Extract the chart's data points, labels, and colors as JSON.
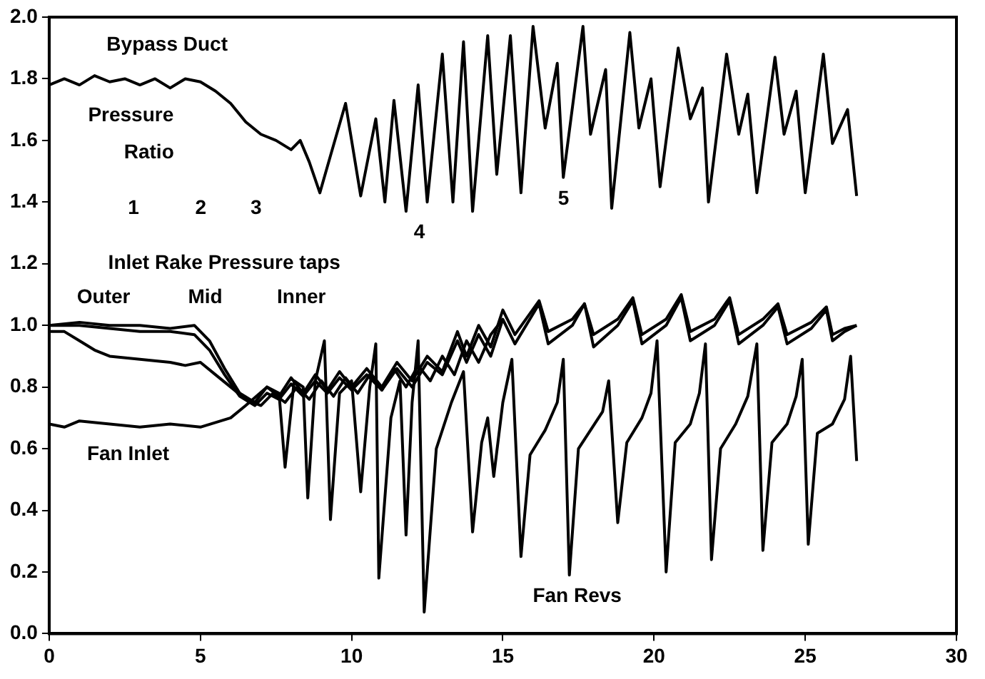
{
  "chart_data": {
    "type": "line",
    "xlim": [
      0,
      30
    ],
    "xticks": [
      0,
      5,
      10,
      15,
      20,
      25,
      30
    ],
    "ylim": [
      0,
      2
    ],
    "yticks": [
      {
        "value": 0,
        "label": "0.0"
      },
      {
        "value": 0.2,
        "label": "0.2"
      },
      {
        "value": 0.4,
        "label": "0.4"
      },
      {
        "value": 0.6,
        "label": "0.6"
      },
      {
        "value": 0.8,
        "label": "0.8"
      },
      {
        "value": 1,
        "label": "1.0"
      },
      {
        "value": 1.2,
        "label": "1.2"
      },
      {
        "value": 1.4,
        "label": "1.4"
      },
      {
        "value": 1.6,
        "label": "1.6"
      },
      {
        "value": 1.8,
        "label": "1.8"
      },
      {
        "value": 2,
        "label": "2.0"
      }
    ],
    "grid": false,
    "legend": false,
    "marker": "none",
    "line_style": "solid",
    "series": [
      {
        "color": "#000000",
        "x": [
          0,
          0.5,
          1,
          1.5,
          2,
          2.5,
          3,
          3.5,
          4,
          4.5,
          5,
          5.5,
          6,
          6.5,
          7,
          7.5,
          8,
          8.3,
          8.6,
          8.95,
          9.3,
          9.8,
          10.3,
          10.8,
          11.1,
          11.4,
          11.8,
          12.2,
          12.5,
          13.0,
          13.35,
          13.7,
          14.0,
          14.5,
          14.8,
          15.25,
          15.6,
          16.0,
          16.4,
          16.8,
          17.0,
          17.65,
          17.9,
          18.4,
          18.6,
          19.2,
          19.5,
          19.9,
          20.2,
          20.8,
          21.2,
          21.6,
          21.8,
          22.4,
          22.8,
          23.1,
          23.4,
          24.0,
          24.3,
          24.7,
          25.0,
          25.6,
          25.9,
          26.4,
          26.7
        ],
        "values": [
          1.78,
          1.8,
          1.78,
          1.81,
          1.79,
          1.8,
          1.78,
          1.8,
          1.77,
          1.8,
          1.79,
          1.76,
          1.72,
          1.66,
          1.62,
          1.6,
          1.57,
          1.6,
          1.53,
          1.43,
          1.55,
          1.72,
          1.42,
          1.67,
          1.4,
          1.73,
          1.37,
          1.78,
          1.4,
          1.88,
          1.4,
          1.92,
          1.37,
          1.94,
          1.49,
          1.94,
          1.43,
          1.97,
          1.64,
          1.85,
          1.48,
          1.97,
          1.62,
          1.83,
          1.38,
          1.95,
          1.64,
          1.8,
          1.45,
          1.9,
          1.67,
          1.77,
          1.4,
          1.88,
          1.62,
          1.75,
          1.43,
          1.87,
          1.62,
          1.76,
          1.43,
          1.88,
          1.59,
          1.7,
          1.42
        ]
      },
      {
        "color": "#000000",
        "x": [
          0,
          1,
          2,
          3,
          4,
          4.8,
          5.3,
          5.8,
          6.3,
          6.8,
          7.2,
          7.6,
          8,
          8.4,
          8.8,
          9.2,
          9.6,
          10,
          10.5,
          11,
          11.5,
          12,
          12.5,
          13,
          13.5,
          13.8,
          14.2,
          14.6,
          15,
          15.4,
          16.2,
          16.5,
          17.3,
          17.7,
          18.0,
          18.8,
          19.3,
          19.6,
          20.4,
          20.9,
          21.2,
          22,
          22.5,
          22.8,
          23.6,
          24.1,
          24.4,
          25.2,
          25.7,
          25.9,
          26.3,
          26.7
        ],
        "values": [
          1.0,
          1.01,
          1.0,
          1.0,
          0.99,
          1.0,
          0.95,
          0.86,
          0.78,
          0.75,
          0.8,
          0.77,
          0.83,
          0.78,
          0.84,
          0.79,
          0.85,
          0.8,
          0.86,
          0.8,
          0.88,
          0.82,
          0.9,
          0.85,
          0.98,
          0.9,
          1.0,
          0.93,
          1.05,
          0.97,
          1.08,
          0.98,
          1.02,
          1.07,
          0.97,
          1.02,
          1.09,
          0.97,
          1.02,
          1.1,
          0.98,
          1.02,
          1.09,
          0.97,
          1.02,
          1.07,
          0.97,
          1.01,
          1.06,
          0.97,
          0.99,
          1.0
        ]
      },
      {
        "color": "#000000",
        "x": [
          0,
          1,
          2,
          3,
          4,
          4.8,
          5.3,
          5.8,
          6.3,
          6.8,
          7.2,
          7.6,
          8,
          8.4,
          8.8,
          9.2,
          9.6,
          10,
          10.5,
          11,
          11.5,
          12,
          12.5,
          13,
          13.5,
          13.8,
          14.2,
          14.6,
          15,
          15.4,
          16.2,
          16.5,
          17.3,
          17.7,
          18.0,
          18.8,
          19.3,
          19.6,
          20.4,
          20.9,
          21.2,
          22,
          22.5,
          22.8,
          23.6,
          24.1,
          24.4,
          25.2,
          25.7,
          25.9,
          26.3,
          26.7
        ],
        "values": [
          1.0,
          1.0,
          0.99,
          0.98,
          0.98,
          0.97,
          0.92,
          0.84,
          0.77,
          0.74,
          0.78,
          0.76,
          0.81,
          0.77,
          0.82,
          0.78,
          0.83,
          0.79,
          0.84,
          0.79,
          0.86,
          0.8,
          0.88,
          0.84,
          0.95,
          0.88,
          0.97,
          0.9,
          1.02,
          0.94,
          1.07,
          0.94,
          1.0,
          1.07,
          0.93,
          1.0,
          1.08,
          0.94,
          1.0,
          1.09,
          0.95,
          1.0,
          1.08,
          0.94,
          1.0,
          1.06,
          0.94,
          0.99,
          1.05,
          0.95,
          0.98,
          1.0
        ]
      },
      {
        "color": "#000000",
        "x": [
          0,
          0.5,
          1,
          1.5,
          2,
          3,
          4,
          4.5,
          5,
          5.5,
          6,
          6.5,
          7,
          7.4,
          7.8,
          8.2,
          8.6,
          9,
          9.4,
          9.8,
          10.2,
          10.6,
          11,
          11.4,
          11.8,
          12.2,
          12.6,
          13,
          13.4,
          13.8,
          14.2,
          14.6,
          15
        ],
        "values": [
          0.98,
          0.98,
          0.95,
          0.92,
          0.9,
          0.89,
          0.88,
          0.87,
          0.88,
          0.84,
          0.8,
          0.76,
          0.74,
          0.78,
          0.75,
          0.8,
          0.76,
          0.82,
          0.77,
          0.83,
          0.78,
          0.84,
          0.79,
          0.86,
          0.8,
          0.87,
          0.82,
          0.9,
          0.84,
          0.95,
          0.88,
          0.97,
          1.02
        ]
      },
      {
        "color": "#000000",
        "x": [
          0,
          0.5,
          1,
          2,
          3,
          4,
          5,
          6,
          6.5,
          7.2,
          7.6,
          7.8,
          8.1,
          8.4,
          8.55,
          8.8,
          9.1,
          9.3,
          9.6,
          10.0,
          10.3,
          10.6,
          10.8,
          10.9,
          11.3,
          11.6,
          11.8,
          12.0,
          12.2,
          12.4,
          12.8,
          13.3,
          13.7,
          14.0,
          14.3,
          14.5,
          14.7,
          15.0,
          15.3,
          15.6,
          15.9,
          16.4,
          16.8,
          17.0,
          17.2,
          17.5,
          17.9,
          18.3,
          18.5,
          18.8,
          19.1,
          19.6,
          19.9,
          20.1,
          20.4,
          20.7,
          21.2,
          21.5,
          21.7,
          21.9,
          22.2,
          22.7,
          23.1,
          23.4,
          23.6,
          23.9,
          24.4,
          24.7,
          24.9,
          25.1,
          25.4,
          25.9,
          26.3,
          26.5,
          26.7
        ],
        "values": [
          0.68,
          0.67,
          0.69,
          0.68,
          0.67,
          0.68,
          0.67,
          0.7,
          0.74,
          0.8,
          0.78,
          0.54,
          0.82,
          0.8,
          0.44,
          0.82,
          0.95,
          0.37,
          0.78,
          0.82,
          0.46,
          0.8,
          0.94,
          0.18,
          0.7,
          0.82,
          0.32,
          0.75,
          0.95,
          0.07,
          0.6,
          0.75,
          0.85,
          0.33,
          0.62,
          0.7,
          0.51,
          0.75,
          0.89,
          0.25,
          0.58,
          0.66,
          0.75,
          0.89,
          0.19,
          0.6,
          0.66,
          0.72,
          0.82,
          0.36,
          0.62,
          0.7,
          0.78,
          0.95,
          0.2,
          0.62,
          0.68,
          0.78,
          0.94,
          0.24,
          0.6,
          0.68,
          0.77,
          0.94,
          0.27,
          0.62,
          0.68,
          0.77,
          0.89,
          0.29,
          0.65,
          0.68,
          0.76,
          0.9,
          0.56
        ]
      }
    ],
    "annotations": [
      "Bypass Duct",
      "Pressure",
      "Ratio",
      "1",
      "2",
      "3",
      "4",
      "5",
      "Inlet Rake Pressure taps",
      "Outer",
      "Mid",
      "Inner",
      "Fan Inlet",
      "Fan Revs"
    ]
  }
}
